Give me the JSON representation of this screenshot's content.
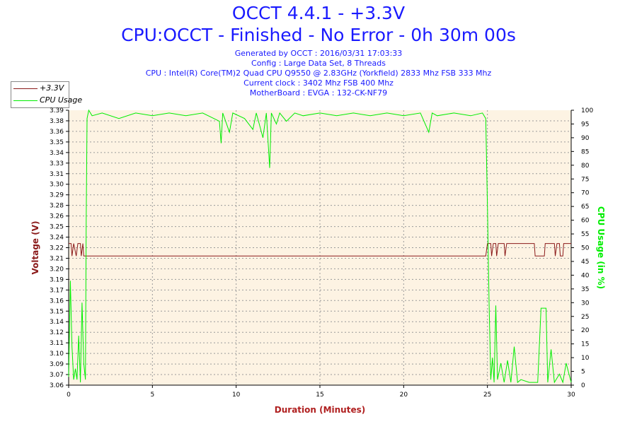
{
  "header": {
    "title": "OCCT 4.4.1 - +3.3V",
    "subtitle": "CPU:OCCT - Finished - No Error - 0h 30m 00s",
    "info_lines": [
      "Generated by OCCT : 2016/03/31 17:03:33",
      "Config : Large Data Set, 8 Threads",
      "CPU : Intel(R) Core(TM)2 Quad CPU Q9550 @ 2.83GHz (Yorkfield) 2833 Mhz FSB 333 Mhz",
      "Current clock : 3402 Mhz FSB 400 Mhz",
      "MotherBoard : EVGA : 132-CK-NF79"
    ]
  },
  "legend": [
    {
      "label": "+3.3V",
      "color": "#8b1a1a"
    },
    {
      "label": "CPU Usage",
      "color": "#00ee00"
    }
  ],
  "chart_data": {
    "type": "line",
    "xlabel": "Duration (Minutes)",
    "ylabel_left": "Voltage (V)",
    "ylabel_right": "CPU Usage (in %)",
    "xlim": [
      0,
      30
    ],
    "x_ticks": [
      "0",
      "5",
      "10",
      "15",
      "20",
      "25",
      "30"
    ],
    "ylim_left": [
      3.06,
      3.39
    ],
    "y_ticks_left": [
      "3.06",
      "3.07",
      "3.09",
      "3.10",
      "3.11",
      "3.12",
      "3.14",
      "3.15",
      "3.16",
      "3.17",
      "3.19",
      "3.20",
      "3.21",
      "3.22",
      "3.24",
      "3.25",
      "3.26",
      "3.28",
      "3.29",
      "3.30",
      "3.31",
      "3.33",
      "3.34",
      "3.35",
      "3.36",
      "3.38",
      "3.39"
    ],
    "ylim_right": [
      0,
      100
    ],
    "y_ticks_right": [
      "0",
      "5",
      "10",
      "15",
      "20",
      "25",
      "30",
      "35",
      "40",
      "45",
      "50",
      "55",
      "60",
      "65",
      "70",
      "75",
      "80",
      "85",
      "90",
      "95",
      "100"
    ],
    "grid": true,
    "series": [
      {
        "name": "+3.3V",
        "axis": "left",
        "color": "#8b1a1a",
        "points": [
          [
            0,
            3.23
          ],
          [
            0.15,
            3.23
          ],
          [
            0.2,
            3.215
          ],
          [
            0.3,
            3.23
          ],
          [
            0.45,
            3.215
          ],
          [
            0.55,
            3.23
          ],
          [
            0.7,
            3.23
          ],
          [
            0.75,
            3.215
          ],
          [
            0.85,
            3.23
          ],
          [
            0.9,
            3.215
          ],
          [
            1.0,
            3.215
          ],
          [
            24.9,
            3.215
          ],
          [
            25.0,
            3.23
          ],
          [
            25.2,
            3.23
          ],
          [
            25.25,
            3.215
          ],
          [
            25.35,
            3.23
          ],
          [
            25.5,
            3.23
          ],
          [
            25.55,
            3.215
          ],
          [
            25.65,
            3.23
          ],
          [
            26.0,
            3.23
          ],
          [
            26.05,
            3.215
          ],
          [
            26.15,
            3.23
          ],
          [
            27.8,
            3.23
          ],
          [
            27.85,
            3.215
          ],
          [
            28.4,
            3.215
          ],
          [
            28.45,
            3.23
          ],
          [
            29.0,
            3.23
          ],
          [
            29.05,
            3.215
          ],
          [
            29.15,
            3.23
          ],
          [
            29.3,
            3.23
          ],
          [
            29.35,
            3.215
          ],
          [
            29.5,
            3.215
          ],
          [
            29.55,
            3.23
          ],
          [
            30,
            3.23
          ]
        ]
      },
      {
        "name": "CPU Usage",
        "axis": "right",
        "color": "#00ee00",
        "points": [
          [
            0,
            3
          ],
          [
            0.1,
            38
          ],
          [
            0.2,
            14
          ],
          [
            0.3,
            2
          ],
          [
            0.4,
            6
          ],
          [
            0.5,
            2
          ],
          [
            0.6,
            18
          ],
          [
            0.7,
            1
          ],
          [
            0.8,
            30
          ],
          [
            0.9,
            8
          ],
          [
            1.0,
            2
          ],
          [
            1.05,
            60
          ],
          [
            1.1,
            97
          ],
          [
            1.2,
            100
          ],
          [
            1.4,
            98
          ],
          [
            2.0,
            99
          ],
          [
            3.0,
            97
          ],
          [
            4.0,
            99
          ],
          [
            5.0,
            98
          ],
          [
            6.0,
            99
          ],
          [
            7.0,
            98
          ],
          [
            8.0,
            99
          ],
          [
            9.0,
            96
          ],
          [
            9.1,
            88
          ],
          [
            9.2,
            99
          ],
          [
            9.6,
            92
          ],
          [
            9.8,
            99
          ],
          [
            10.5,
            97
          ],
          [
            11.0,
            93
          ],
          [
            11.2,
            99
          ],
          [
            11.6,
            90
          ],
          [
            11.8,
            99
          ],
          [
            12.0,
            79
          ],
          [
            12.1,
            99
          ],
          [
            12.4,
            95
          ],
          [
            12.6,
            99
          ],
          [
            13.0,
            96
          ],
          [
            13.5,
            99
          ],
          [
            14.0,
            98
          ],
          [
            15.0,
            99
          ],
          [
            16.0,
            98
          ],
          [
            17.0,
            99
          ],
          [
            18.0,
            98
          ],
          [
            19.0,
            99
          ],
          [
            20.0,
            98
          ],
          [
            21.0,
            99
          ],
          [
            21.5,
            92
          ],
          [
            21.7,
            99
          ],
          [
            22.0,
            98
          ],
          [
            23.0,
            99
          ],
          [
            24.0,
            98
          ],
          [
            24.7,
            99
          ],
          [
            24.9,
            97
          ],
          [
            25.0,
            65
          ],
          [
            25.1,
            30
          ],
          [
            25.2,
            2
          ],
          [
            25.3,
            10
          ],
          [
            25.4,
            1
          ],
          [
            25.5,
            29
          ],
          [
            25.6,
            2
          ],
          [
            25.8,
            8
          ],
          [
            26.0,
            1
          ],
          [
            26.2,
            9
          ],
          [
            26.4,
            1
          ],
          [
            26.6,
            14
          ],
          [
            26.8,
            1
          ],
          [
            27.0,
            2
          ],
          [
            27.5,
            1
          ],
          [
            28.0,
            1
          ],
          [
            28.2,
            28
          ],
          [
            28.5,
            28
          ],
          [
            28.6,
            1
          ],
          [
            28.8,
            13
          ],
          [
            29.0,
            1
          ],
          [
            29.3,
            4
          ],
          [
            29.5,
            1
          ],
          [
            29.7,
            8
          ],
          [
            30,
            1
          ]
        ]
      }
    ]
  }
}
